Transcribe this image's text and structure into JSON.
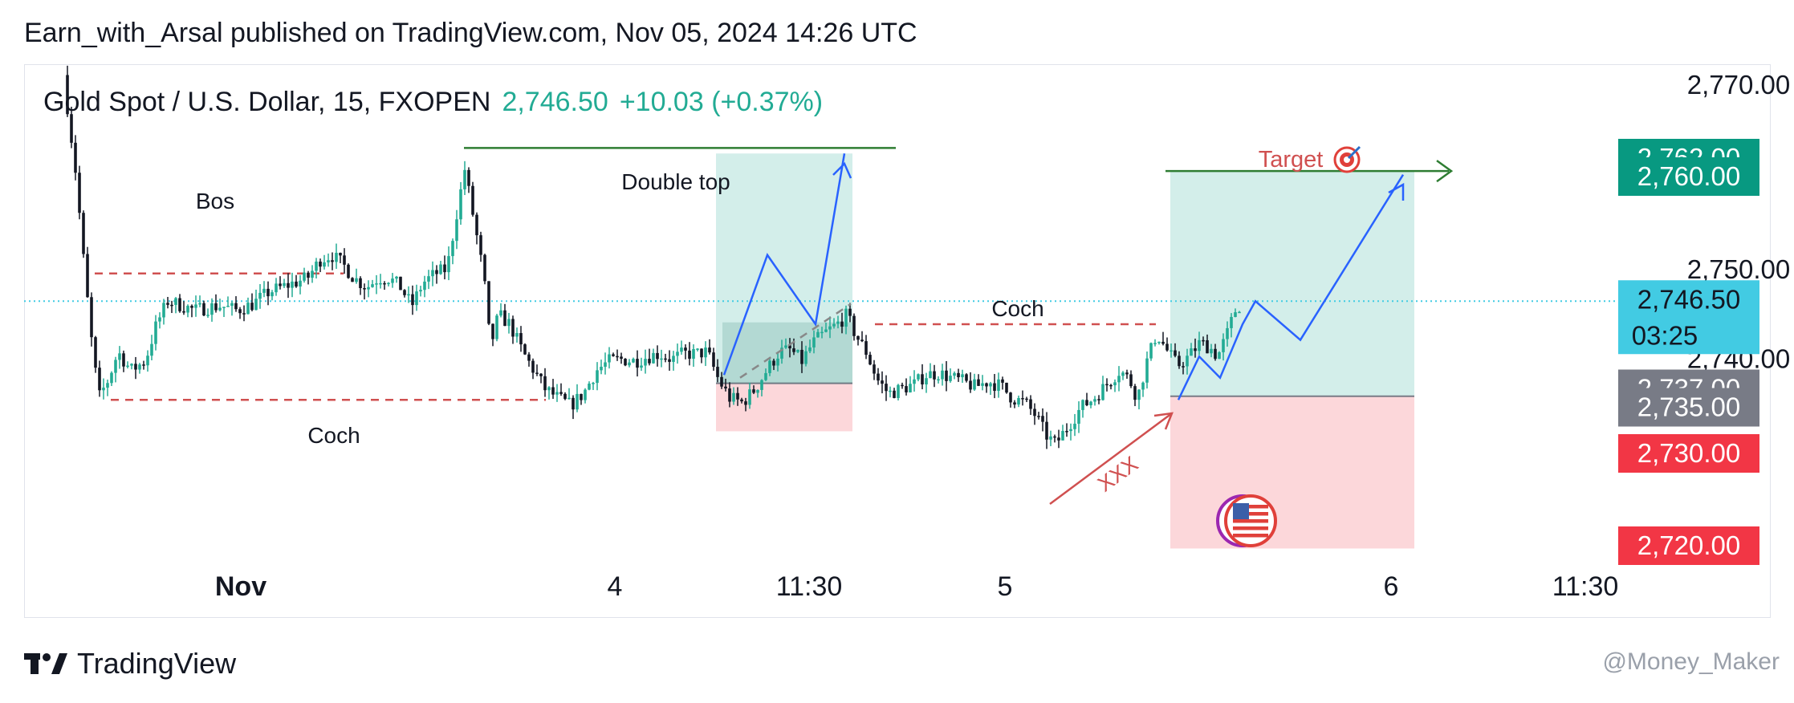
{
  "header": {
    "published_line": "Earn_with_Arsal published on TradingView.com, Nov 05, 2024 14:26 UTC",
    "symbol_line": "Gold Spot / U.S. Dollar, 15, FXOPEN",
    "last_price": "2,746.50",
    "change": "+10.03 (+0.37%)",
    "accent_color": "#22ab94"
  },
  "footer": {
    "brand": "TradingView",
    "watermark": "@Money_Maker"
  },
  "chart_data": {
    "type": "candlestick",
    "series": [
      {
        "name": "XAUUSD 15m",
        "color_up": "#22ab94",
        "color_down": "#131722"
      }
    ],
    "ylim": [
      2716,
      2772
    ],
    "price_axis_labels": [
      "2,770.00",
      "2,750.00",
      "2,740.00"
    ],
    "price_tags": [
      {
        "text": "2,762.00",
        "value": 2762,
        "color": "#089981"
      },
      {
        "text": "2,760.00",
        "value": 2760,
        "color": "#089981"
      },
      {
        "text": "2,746.50",
        "value": 2746.5,
        "color": "#42cbe3",
        "sub": "03:25"
      },
      {
        "text": "2,737.00",
        "value": 2737,
        "color": "#787b86"
      },
      {
        "text": "2,735.00",
        "value": 2735,
        "color": "#787b86"
      },
      {
        "text": "2,730.00",
        "value": 2730,
        "color": "#f23645"
      },
      {
        "text": "2,720.00",
        "value": 2720,
        "color": "#f23645"
      }
    ],
    "time_labels": [
      "Nov",
      "4",
      "11:30",
      "5",
      "6",
      "11:30"
    ],
    "current_price": 2746.5,
    "annotations": {
      "bos": "Bos",
      "coch_low": "Coch",
      "double_top": "Double top",
      "coch_right": "Coch",
      "target": "Target",
      "target_icon": "target-emoji-icon",
      "xxx": "XXX",
      "flag_icon": "us-flag-icon"
    },
    "levels": {
      "bos": 2749.5,
      "coch_low": 2735.8,
      "double_top": 2763.1,
      "coch_right": 2744.0,
      "target": 2760.6
    },
    "position_left": {
      "entry": 2737.6,
      "target": 2762.5,
      "stop": 2732.4
    },
    "position_right": {
      "entry": 2736.2,
      "target": 2760.6,
      "stop": 2719.7
    }
  }
}
